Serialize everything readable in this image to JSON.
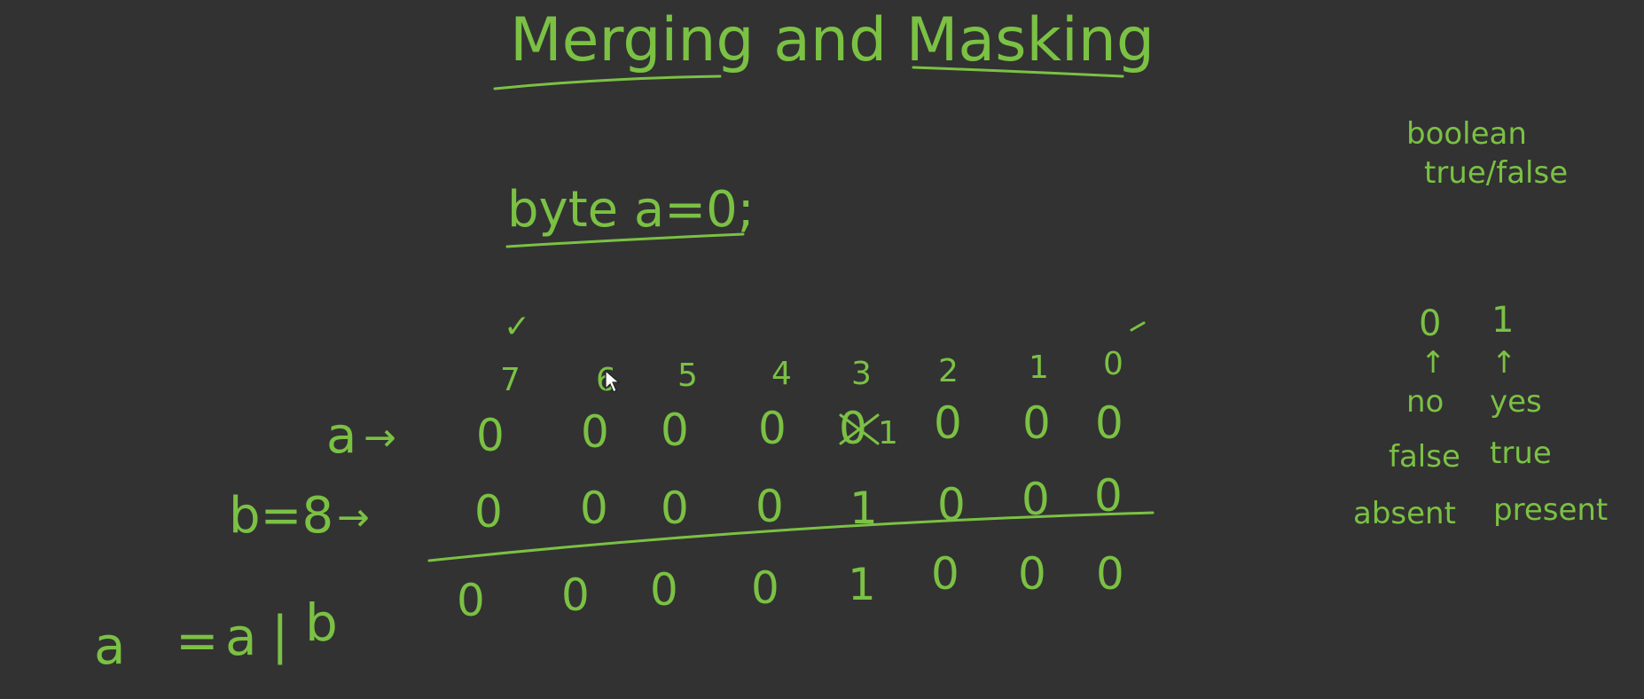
{
  "title": "Merging and Masking",
  "declaration": "byte a=0;",
  "bit_indices": [
    "7",
    "6",
    "5",
    "4",
    "3",
    "2",
    "1",
    "0"
  ],
  "row_a": {
    "label": "a",
    "arrow": "→",
    "bits": [
      "0",
      "0",
      "0",
      "0",
      "0",
      "0",
      "0",
      "0"
    ],
    "crossed_bit_replacement": "1"
  },
  "row_b": {
    "label": "b=8",
    "arrow": "→",
    "bits": [
      "0",
      "0",
      "0",
      "0",
      "1",
      "0",
      "0",
      "0"
    ]
  },
  "result_bits": [
    "0",
    "0",
    "0",
    "0",
    "1",
    "0",
    "0",
    "0"
  ],
  "expression": {
    "lhs": "a",
    "eq": "=",
    "op_a": "a",
    "op": "|",
    "op_b": "b"
  },
  "checkmark": "✓",
  "sidebar": {
    "boolean": "boolean",
    "true_false": "true/false",
    "zero": "0",
    "one": "1",
    "up_arrow": "↑",
    "no": "no",
    "yes": "yes",
    "false": "false",
    "true": "true",
    "absent": "absent",
    "present": "present"
  },
  "ink_color": "#7bc144",
  "background_color": "#323232"
}
